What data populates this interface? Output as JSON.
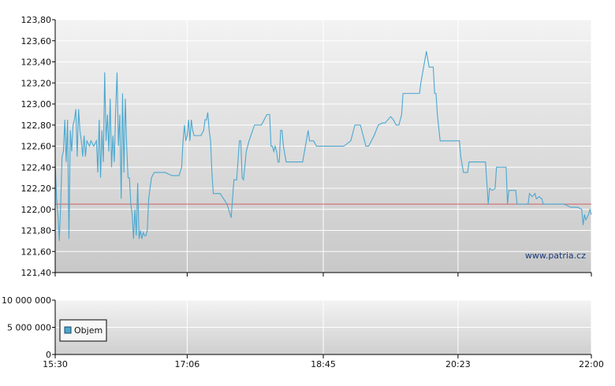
{
  "chart_data": [
    {
      "type": "line",
      "panel": "price",
      "title": "",
      "xlabel": "",
      "ylabel": "",
      "ylim": [
        121.4,
        123.8
      ],
      "yticks": [
        "121,40",
        "121,60",
        "121,80",
        "122,00",
        "122,20",
        "122,40",
        "122,60",
        "122,80",
        "123,00",
        "123,20",
        "123,40",
        "123,60",
        "123,80"
      ],
      "xlim": [
        "15:30",
        "22:00"
      ],
      "xticks": [
        "15:30",
        "17:06",
        "18:45",
        "20:23",
        "22:00"
      ],
      "grid": true,
      "reference_line": {
        "value": 122.05,
        "color": "#d06060"
      },
      "series": [
        {
          "color": "#4aa8d0",
          "points": [
            [
              "15:30",
              122.45
            ],
            [
              "15:31",
              122.1
            ],
            [
              "15:32",
              121.95
            ],
            [
              "15:33",
              121.7
            ],
            [
              "15:34",
              122.05
            ],
            [
              "15:35",
              122.5
            ],
            [
              "15:36",
              122.55
            ],
            [
              "15:37",
              122.85
            ],
            [
              "15:38",
              122.45
            ],
            [
              "15:39",
              122.85
            ],
            [
              "15:40",
              121.72
            ],
            [
              "15:41",
              122.75
            ],
            [
              "15:42",
              122.55
            ],
            [
              "15:43",
              122.8
            ],
            [
              "15:44",
              122.85
            ],
            [
              "15:45",
              122.95
            ],
            [
              "15:46",
              122.5
            ],
            [
              "15:47",
              122.95
            ],
            [
              "15:48",
              122.75
            ],
            [
              "15:49",
              122.65
            ],
            [
              "15:50",
              122.5
            ],
            [
              "15:51",
              122.7
            ],
            [
              "15:52",
              122.5
            ],
            [
              "15:53",
              122.65
            ],
            [
              "15:55",
              122.6
            ],
            [
              "15:56",
              122.65
            ],
            [
              "15:58",
              122.6
            ],
            [
              "16:00",
              122.65
            ],
            [
              "16:01",
              122.35
            ],
            [
              "16:02",
              122.85
            ],
            [
              "16:03",
              122.3
            ],
            [
              "16:04",
              122.75
            ],
            [
              "16:05",
              122.45
            ],
            [
              "16:06",
              123.3
            ],
            [
              "16:07",
              122.65
            ],
            [
              "16:08",
              122.9
            ],
            [
              "16:09",
              122.55
            ],
            [
              "16:10",
              123.05
            ],
            [
              "16:11",
              122.4
            ],
            [
              "16:12",
              122.7
            ],
            [
              "16:13",
              122.45
            ],
            [
              "16:14",
              122.95
            ],
            [
              "16:15",
              123.3
            ],
            [
              "16:16",
              122.6
            ],
            [
              "16:17",
              122.9
            ],
            [
              "16:18",
              122.1
            ],
            [
              "16:19",
              123.1
            ],
            [
              "16:20",
              122.35
            ],
            [
              "16:21",
              123.05
            ],
            [
              "16:22",
              122.6
            ],
            [
              "16:23",
              122.3
            ],
            [
              "16:24",
              122.3
            ],
            [
              "16:25",
              122.05
            ],
            [
              "16:26",
              121.95
            ],
            [
              "16:27",
              121.72
            ],
            [
              "16:28",
              122.0
            ],
            [
              "16:29",
              121.75
            ],
            [
              "16:30",
              122.25
            ],
            [
              "16:31",
              121.72
            ],
            [
              "16:32",
              121.8
            ],
            [
              "16:33",
              121.72
            ],
            [
              "16:34",
              121.78
            ],
            [
              "16:35",
              121.75
            ],
            [
              "16:36",
              121.75
            ],
            [
              "16:37",
              121.8
            ],
            [
              "16:38",
              122.1
            ],
            [
              "16:40",
              122.3
            ],
            [
              "16:42",
              122.35
            ],
            [
              "16:45",
              122.35
            ],
            [
              "16:50",
              122.35
            ],
            [
              "16:55",
              122.32
            ],
            [
              "17:00",
              122.32
            ],
            [
              "17:02",
              122.4
            ],
            [
              "17:03",
              122.65
            ],
            [
              "17:04",
              122.8
            ],
            [
              "17:05",
              122.65
            ],
            [
              "17:06",
              122.7
            ],
            [
              "17:07",
              122.85
            ],
            [
              "17:08",
              122.65
            ],
            [
              "17:09",
              122.85
            ],
            [
              "17:10",
              122.75
            ],
            [
              "17:11",
              122.7
            ],
            [
              "17:12",
              122.7
            ],
            [
              "17:14",
              122.7
            ],
            [
              "17:16",
              122.7
            ],
            [
              "17:18",
              122.75
            ],
            [
              "17:19",
              122.85
            ],
            [
              "17:20",
              122.85
            ],
            [
              "17:21",
              122.92
            ],
            [
              "17:22",
              122.75
            ],
            [
              "17:23",
              122.65
            ],
            [
              "17:24",
              122.35
            ],
            [
              "17:25",
              122.15
            ],
            [
              "17:28",
              122.15
            ],
            [
              "17:30",
              122.15
            ],
            [
              "17:35",
              122.05
            ],
            [
              "17:38",
              121.92
            ],
            [
              "17:40",
              122.28
            ],
            [
              "17:42",
              122.28
            ],
            [
              "17:44",
              122.65
            ],
            [
              "17:45",
              122.65
            ],
            [
              "17:46",
              122.3
            ],
            [
              "17:47",
              122.28
            ],
            [
              "17:49",
              122.55
            ],
            [
              "17:51",
              122.65
            ],
            [
              "17:55",
              122.8
            ],
            [
              "17:58",
              122.8
            ],
            [
              "18:00",
              122.8
            ],
            [
              "18:02",
              122.85
            ],
            [
              "18:04",
              122.9
            ],
            [
              "18:06",
              122.9
            ],
            [
              "18:07",
              122.6
            ],
            [
              "18:08",
              122.6
            ],
            [
              "18:09",
              122.55
            ],
            [
              "18:10",
              122.6
            ],
            [
              "18:11",
              122.55
            ],
            [
              "18:12",
              122.45
            ],
            [
              "18:13",
              122.45
            ],
            [
              "18:14",
              122.75
            ],
            [
              "18:15",
              122.75
            ],
            [
              "18:16",
              122.6
            ],
            [
              "18:18",
              122.45
            ],
            [
              "18:20",
              122.45
            ],
            [
              "18:25",
              122.45
            ],
            [
              "18:30",
              122.45
            ],
            [
              "18:32",
              122.6
            ],
            [
              "18:34",
              122.75
            ],
            [
              "18:35",
              122.65
            ],
            [
              "18:38",
              122.65
            ],
            [
              "18:40",
              122.6
            ],
            [
              "18:45",
              122.6
            ],
            [
              "18:50",
              122.6
            ],
            [
              "18:55",
              122.6
            ],
            [
              "19:00",
              122.6
            ],
            [
              "19:05",
              122.65
            ],
            [
              "19:08",
              122.8
            ],
            [
              "19:12",
              122.8
            ],
            [
              "19:15",
              122.65
            ],
            [
              "19:16",
              122.6
            ],
            [
              "19:18",
              122.6
            ],
            [
              "19:22",
              122.7
            ],
            [
              "19:25",
              122.8
            ],
            [
              "19:28",
              122.82
            ],
            [
              "19:30",
              122.82
            ],
            [
              "19:32",
              122.85
            ],
            [
              "19:34",
              122.88
            ],
            [
              "19:36",
              122.85
            ],
            [
              "19:38",
              122.8
            ],
            [
              "19:40",
              122.8
            ],
            [
              "19:42",
              122.9
            ],
            [
              "19:43",
              123.1
            ],
            [
              "19:46",
              123.1
            ],
            [
              "19:50",
              123.1
            ],
            [
              "19:55",
              123.1
            ],
            [
              "19:56",
              123.2
            ],
            [
              "19:58",
              123.35
            ],
            [
              "20:00",
              123.5
            ],
            [
              "20:02",
              123.35
            ],
            [
              "20:05",
              123.35
            ],
            [
              "20:06",
              123.1
            ],
            [
              "20:07",
              123.1
            ],
            [
              "20:08",
              122.9
            ],
            [
              "20:10",
              122.65
            ],
            [
              "20:15",
              122.65
            ],
            [
              "20:20",
              122.65
            ],
            [
              "20:24",
              122.65
            ],
            [
              "20:25",
              122.5
            ],
            [
              "20:27",
              122.35
            ],
            [
              "20:30",
              122.35
            ],
            [
              "20:31",
              122.45
            ],
            [
              "20:35",
              122.45
            ],
            [
              "20:40",
              122.45
            ],
            [
              "20:43",
              122.45
            ],
            [
              "20:45",
              122.05
            ],
            [
              "20:46",
              122.2
            ],
            [
              "20:48",
              122.18
            ],
            [
              "20:50",
              122.2
            ],
            [
              "20:51",
              122.4
            ],
            [
              "20:55",
              122.4
            ],
            [
              "20:58",
              122.4
            ],
            [
              "20:59",
              122.05
            ],
            [
              "21:00",
              122.18
            ],
            [
              "21:02",
              122.18
            ],
            [
              "21:05",
              122.18
            ],
            [
              "21:06",
              122.05
            ],
            [
              "21:10",
              122.05
            ],
            [
              "21:14",
              122.05
            ],
            [
              "21:15",
              122.15
            ],
            [
              "21:17",
              122.12
            ],
            [
              "21:19",
              122.15
            ],
            [
              "21:20",
              122.1
            ],
            [
              "21:22",
              122.12
            ],
            [
              "21:24",
              122.1
            ],
            [
              "21:25",
              122.05
            ],
            [
              "21:28",
              122.05
            ],
            [
              "21:32",
              122.05
            ],
            [
              "21:35",
              122.05
            ],
            [
              "21:40",
              122.05
            ],
            [
              "21:45",
              122.02
            ],
            [
              "21:50",
              122.02
            ],
            [
              "21:53",
              122.0
            ],
            [
              "21:54",
              121.85
            ],
            [
              "21:55",
              121.95
            ],
            [
              "21:56",
              121.9
            ],
            [
              "21:58",
              121.95
            ],
            [
              "21:59",
              122.0
            ],
            [
              "22:00",
              121.95
            ]
          ]
        }
      ]
    },
    {
      "type": "bar",
      "panel": "volume",
      "title": "",
      "ylim": [
        0,
        10000000
      ],
      "yticks": [
        "0",
        "5 000 000",
        "10 000 000"
      ],
      "xticks": [
        "15:30",
        "17:06",
        "18:45",
        "20:23",
        "22:00"
      ],
      "grid": true,
      "legend": {
        "placement": "bottom-left",
        "entries": [
          {
            "label": "Objem",
            "color": "#4aa8d0"
          }
        ]
      },
      "series": [
        {
          "name": "Objem",
          "values": []
        }
      ]
    }
  ],
  "watermark": "www.patria.cz",
  "colors": {
    "line": "#4aa8d0",
    "reference": "#d06060",
    "grid": "#ffffff",
    "axis": "#000000"
  }
}
